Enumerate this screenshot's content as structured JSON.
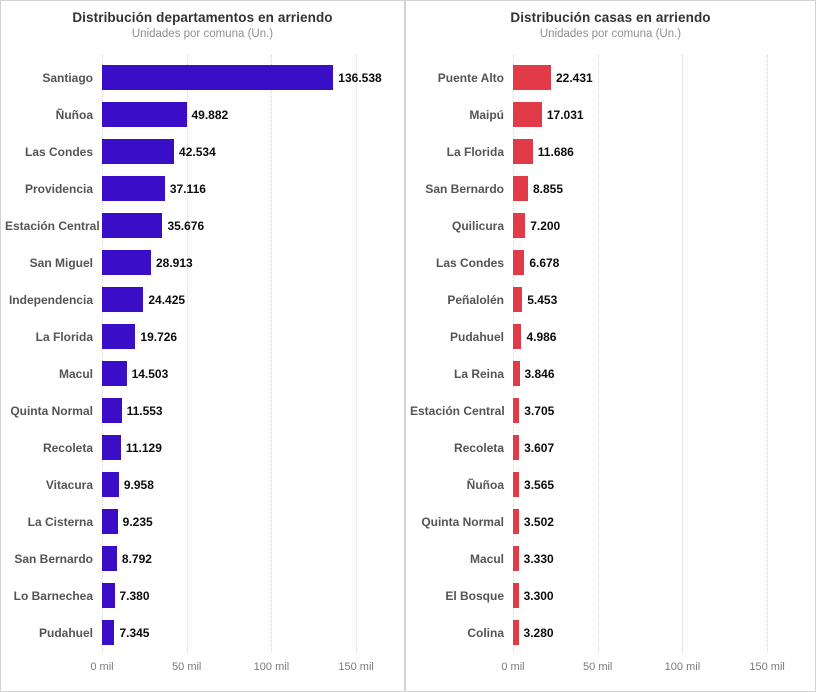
{
  "page": {
    "background": "#ffffff",
    "card_border_color": "#d2d2d2",
    "gridline_color": "#d7d7d7"
  },
  "chart_data": [
    {
      "type": "bar",
      "orientation": "horizontal",
      "title": "Distribución departamentos en arriendo",
      "subtitle": "Unidades por comuna (Un.)",
      "bar_color": "#3A0DC6",
      "categories": [
        "Santiago",
        "Ñuñoa",
        "Las Condes",
        "Providencia",
        "Estación Central",
        "San Miguel",
        "Independencia",
        "La Florida",
        "Macul",
        "Quinta Normal",
        "Recoleta",
        "Vitacura",
        "La Cisterna",
        "San Bernardo",
        "Lo Barnechea",
        "Pudahuel"
      ],
      "values": [
        136538,
        49882,
        42534,
        37116,
        35676,
        28913,
        24425,
        19726,
        14503,
        11553,
        11129,
        9958,
        9235,
        8792,
        7380,
        7345
      ],
      "value_labels": [
        "136.538",
        "49.882",
        "42.534",
        "37.116",
        "35.676",
        "28.913",
        "24.425",
        "19.726",
        "14.503",
        "11.553",
        "11.129",
        "9.958",
        "9.235",
        "8.792",
        "7.380",
        "7.345"
      ],
      "xlabel": "",
      "ylabel": "",
      "x_tick_labels": [
        "0 mil",
        "50 mil",
        "100 mil",
        "150 mil"
      ],
      "x_tick_values": [
        0,
        50000,
        100000,
        150000
      ],
      "x_max": 170000,
      "grid": "dotted-vertical",
      "legend": "none",
      "value_label_position": "outside-end"
    },
    {
      "type": "bar",
      "orientation": "horizontal",
      "title": "Distribución casas en arriendo",
      "subtitle": "Unidades por comuna (Un.)",
      "bar_color": "#E23B48",
      "categories": [
        "Puente Alto",
        "Maipú",
        "La Florida",
        "San Bernardo",
        "Quilicura",
        "Las Condes",
        "Peñalolén",
        "Pudahuel",
        "La Reina",
        "Estación Central",
        "Recoleta",
        "Ñuñoa",
        "Quinta Normal",
        "Macul",
        "El Bosque",
        "Colina"
      ],
      "values": [
        22431,
        17031,
        11686,
        8855,
        7200,
        6678,
        5453,
        4986,
        3846,
        3705,
        3607,
        3565,
        3502,
        3330,
        3300,
        3280
      ],
      "value_labels": [
        "22.431",
        "17.031",
        "11.686",
        "8.855",
        "7.200",
        "6.678",
        "5.453",
        "4.986",
        "3.846",
        "3.705",
        "3.607",
        "3.565",
        "3.502",
        "3.330",
        "3.300",
        "3.280"
      ],
      "xlabel": "",
      "ylabel": "",
      "x_tick_labels": [
        "0 mil",
        "50 mil",
        "100 mil",
        "150 mil"
      ],
      "x_tick_values": [
        0,
        50000,
        100000,
        150000
      ],
      "x_max": 170000,
      "grid": "dotted-vertical",
      "legend": "none",
      "value_label_position": "outside-end"
    }
  ]
}
